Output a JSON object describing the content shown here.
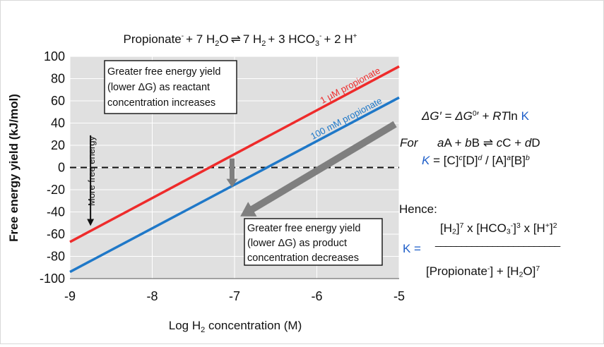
{
  "chart_data": {
    "type": "line",
    "title_parts": {
      "reactant": "Propionate",
      "reactant_charge": "-",
      "plus1": "+ 7 H",
      "sub2a": "2",
      "water": "O",
      "arrow": "⇌",
      "prod1": "7 H",
      "sub2b": "2",
      "plus2": "+ 3 HCO",
      "sub3": "3",
      "charge2": "-",
      "plus3": "+ 2 H",
      "charge3": "+"
    },
    "xlabel_parts": {
      "pre": "Log H",
      "sub": "2",
      "post": " concentration (M)"
    },
    "ylabel": "Free energy yield (kJ/mol)",
    "xlim": [
      -9,
      -5
    ],
    "ylim": [
      -100,
      100
    ],
    "x_ticks": [
      -9,
      -8,
      -7,
      -6,
      -5
    ],
    "x_tick_labels": [
      "-9",
      "-8",
      "-7",
      "-6",
      "-5"
    ],
    "y_ticks": [
      100,
      80,
      60,
      40,
      20,
      0,
      -20,
      -40,
      -60,
      -80,
      -100
    ],
    "y_tick_labels": [
      "100",
      "80",
      "60",
      "40",
      "20",
      "0",
      "-20",
      "-40",
      "-60",
      "-80",
      "-100"
    ],
    "grid": true,
    "reference_line": {
      "y": 0,
      "style": "dashed"
    },
    "series": [
      {
        "name": "1 µM propionate",
        "color": "#ee2b2b",
        "x": [
          -9,
          -5
        ],
        "y": [
          -67,
          91
        ]
      },
      {
        "name": "100 mM propionate",
        "color": "#1f78c8",
        "x": [
          -9,
          -5
        ],
        "y": [
          -94,
          63
        ]
      }
    ],
    "annotations": {
      "top_box": [
        "Greater free energy yield",
        "(lower ΔG) as reactant",
        "concentration increases"
      ],
      "bottom_box": [
        "Greater free energy yield",
        "(lower ΔG) as product",
        "concentration decreases"
      ],
      "vertical_label": "More free energy"
    },
    "arrows": {
      "down_arrow": {
        "from": [
          -8.75,
          29
        ],
        "to": [
          -8.75,
          -52
        ]
      },
      "series_shift_arrow": {
        "from": [
          -7.03,
          3
        ],
        "to": [
          -7.03,
          -14
        ]
      },
      "big_diagonal_arrow": {
        "from": [
          -5.05,
          39
        ],
        "to": [
          -6.93,
          -44
        ]
      }
    }
  },
  "equation": {
    "dg_prime": "ΔG′",
    "eq": "= ",
    "dg_zero": "ΔG",
    "zero_mark": "0",
    "prime_mark": "′",
    "plus": " + ",
    "rt": "RT",
    "ln": "ln ",
    "k": "K"
  },
  "general": {
    "for": "For",
    "a": "a",
    "A": "A",
    "plus_b": " + ",
    "b": "b",
    "B": "B",
    "arrow": "⇌",
    "c": "c",
    "C": "C",
    "plus_d": " + ",
    "d": "d",
    "D": "D"
  },
  "k_def": {
    "k": "K",
    "eq": " = ",
    "C": "[C]",
    "c": "c",
    "D": "[D]",
    "d": "d",
    "slash": " / ",
    "A": "[A]",
    "a": "a",
    "B": "[B]",
    "b": "b"
  },
  "hence": "Hence:",
  "k_final": {
    "numerator": {
      "h2": "[H",
      "h2_sub": "2",
      "h2_close": "]",
      "h2_pow": "7",
      "x1": " x ",
      "hco3": "[HCO",
      "hco3_sub": "3",
      "hco3_charge": "-",
      "hco3_close": "]",
      "hco3_pow": "3",
      "x2": " x ",
      "hplus": "[H",
      "hplus_charge": "+",
      "hplus_close": "]",
      "hplus_pow": "2"
    },
    "k_label": "K =",
    "fraction_bar": "________________________",
    "denominator": {
      "prop": "[Propionate",
      "prop_charge": "-",
      "prop_close": "]",
      "plus": " + ",
      "h2o": "[H",
      "h2o_sub": "2",
      "h2o_close": "O]",
      "h2o_pow": "7"
    }
  }
}
